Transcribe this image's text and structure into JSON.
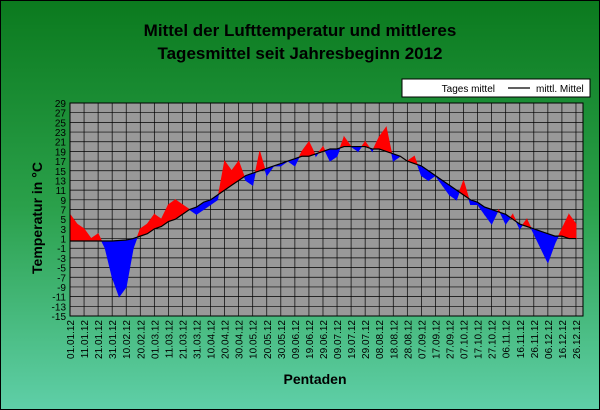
{
  "chart_data": {
    "type": "line",
    "title": [
      "Mittel der Lufttemperatur und mittleres",
      "Tagesmittel seit Jahresbeginn 2012"
    ],
    "x_label": "Pentaden",
    "y_label": "Temperatur in °C",
    "categories": [
      "01.01.12",
      null,
      "11.01.12",
      null,
      "21.01.12",
      null,
      "31.01.12",
      null,
      "10.02.12",
      null,
      "20.02.12",
      null,
      "01.03.12",
      null,
      "11.03.12",
      null,
      "21.03.12",
      null,
      "31.03.12",
      null,
      "10.04.12",
      null,
      "20.04.12",
      null,
      "30.04.12",
      null,
      "10.05.12",
      null,
      "20.05.12",
      null,
      "30.05.12",
      null,
      "09.06.12",
      null,
      "19.06.12",
      null,
      "29.06.12",
      null,
      "09.07.12",
      null,
      "19.07.12",
      null,
      "29.07.12",
      null,
      "08.08.12",
      null,
      "18.08.12",
      null,
      "28.08.12",
      null,
      "07.09.12",
      null,
      "17.09.12",
      null,
      "27.09.12",
      null,
      "07.10.12",
      null,
      "17.10.12",
      null,
      "27.10.12",
      null,
      "06.11.12",
      null,
      "16.11.12",
      null,
      "26.11.12",
      null,
      "06.12.12",
      null,
      "16.12.12",
      null,
      "26.12.12"
    ],
    "series": [
      {
        "name": "Tages mittel",
        "above_color": "#ff0000",
        "below_color": "#0000ff",
        "values": [
          6,
          4,
          3,
          1,
          2,
          -1,
          -7,
          -11,
          -9,
          -1,
          3,
          4,
          6,
          5,
          8,
          9,
          8,
          7,
          6,
          7,
          8,
          9,
          17,
          15,
          17,
          13,
          12,
          19,
          14,
          16,
          16,
          17,
          16,
          19,
          21,
          18,
          20,
          17,
          18,
          22,
          20,
          19,
          21,
          19,
          22,
          24,
          17,
          18,
          17,
          18,
          14,
          13,
          14,
          12,
          10,
          9,
          13,
          8,
          8,
          6,
          4,
          7,
          4,
          6,
          3,
          5,
          2,
          -1,
          -4,
          0,
          3,
          6,
          4
        ]
      },
      {
        "name": "mittl. Mittel",
        "color": "#000000",
        "values": [
          0.5,
          0.5,
          0.5,
          0.5,
          0.5,
          0.5,
          0.5,
          0.6,
          0.7,
          1,
          1.5,
          2,
          3,
          3.5,
          4.5,
          5,
          6,
          7,
          7.5,
          8.5,
          9,
          10,
          11,
          12,
          13,
          14,
          14.5,
          15,
          15.5,
          16,
          16.5,
          17,
          17.5,
          18,
          18,
          18.5,
          19,
          19.5,
          19.5,
          20,
          20,
          20,
          20,
          19.5,
          19.5,
          19,
          18.5,
          18,
          17,
          16.5,
          16,
          15,
          14,
          13,
          12,
          11,
          10,
          9,
          8.5,
          7.5,
          7,
          6.5,
          6,
          5,
          4,
          3.5,
          3,
          2.5,
          2,
          1.5,
          1.5,
          1,
          1
        ]
      }
    ],
    "ylim": [
      -15,
      29
    ],
    "yticks": [
      -15,
      -13,
      -11,
      -9,
      -7,
      -5,
      -3,
      -1,
      1,
      3,
      5,
      7,
      9,
      11,
      13,
      15,
      17,
      19,
      21,
      23,
      25,
      27,
      29
    ],
    "grid": true,
    "legend": "top-right",
    "plot_color": "#999999"
  }
}
